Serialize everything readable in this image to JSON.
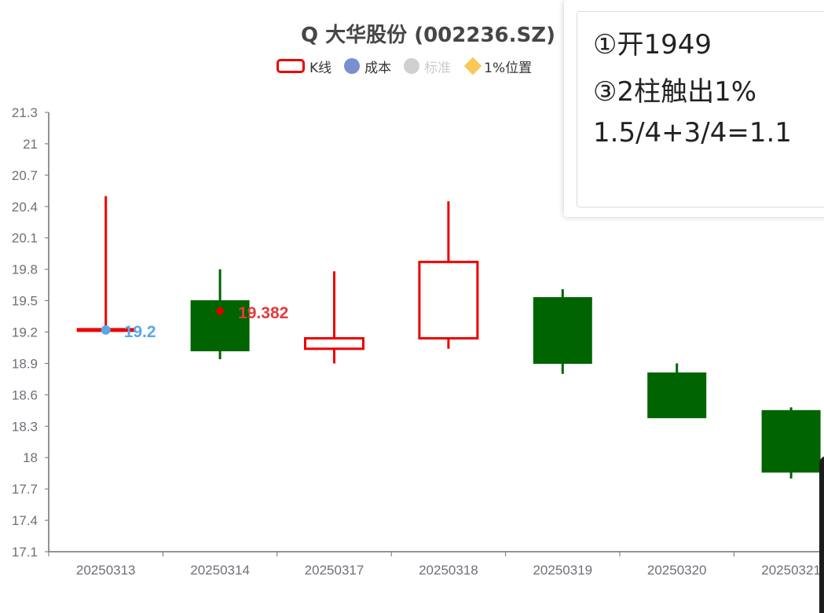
{
  "chart_data": {
    "type": "candlestick",
    "title": "Q 大华股份 (002236.SZ)",
    "legend": [
      {
        "name": "K线",
        "symbol": "kline",
        "color": "#ec0000",
        "active": true
      },
      {
        "name": "成本",
        "symbol": "circle",
        "color": "#7b8fd0",
        "active": true
      },
      {
        "name": "标准",
        "symbol": "circle",
        "color": "#d0d0d0",
        "active": false
      },
      {
        "name": "1%位置",
        "symbol": "diamond",
        "color": "#fac858",
        "active": true
      }
    ],
    "categories": [
      "20250313",
      "20250314",
      "20250317",
      "20250318",
      "20250319",
      "20250320",
      "20250321"
    ],
    "candles": [
      {
        "date": "20250313",
        "open": 19.22,
        "close": 19.22,
        "low": 19.22,
        "high": 20.5
      },
      {
        "date": "20250314",
        "open": 19.5,
        "close": 19.02,
        "low": 18.94,
        "high": 19.8
      },
      {
        "date": "20250317",
        "open": 19.04,
        "close": 19.14,
        "low": 18.9,
        "high": 19.78
      },
      {
        "date": "20250318",
        "open": 19.14,
        "close": 19.87,
        "low": 19.04,
        "high": 20.45
      },
      {
        "date": "20250319",
        "open": 19.53,
        "close": 18.9,
        "low": 18.8,
        "high": 19.61
      },
      {
        "date": "20250320",
        "open": 18.81,
        "close": 18.38,
        "low": 18.38,
        "high": 18.9
      },
      {
        "date": "20250321",
        "open": 18.45,
        "close": 17.86,
        "low": 17.8,
        "high": 18.48
      }
    ],
    "up_color": "#ec0000",
    "down_color": "#006400",
    "cost_point": {
      "date": "20250313",
      "value": 19.22,
      "label": "19.2",
      "color": "#5aa7e6"
    },
    "marker_point": {
      "date": "20250314",
      "value": 19.4,
      "label": "19.382",
      "color": "#e43b3b"
    },
    "y_ticks": [
      "21.3",
      "21",
      "20.7",
      "20.4",
      "20.1",
      "19.8",
      "19.5",
      "19.2",
      "18.9",
      "18.6",
      "18.3",
      "18",
      "17.7",
      "17.4",
      "17.1"
    ],
    "ylim": [
      17.1,
      21.3
    ],
    "xlabel": "",
    "ylabel": "",
    "grid": false
  },
  "note": {
    "lines": [
      "①开1949",
      "③2柱触出1%",
      "1.5/4+3/4=1.1"
    ]
  }
}
